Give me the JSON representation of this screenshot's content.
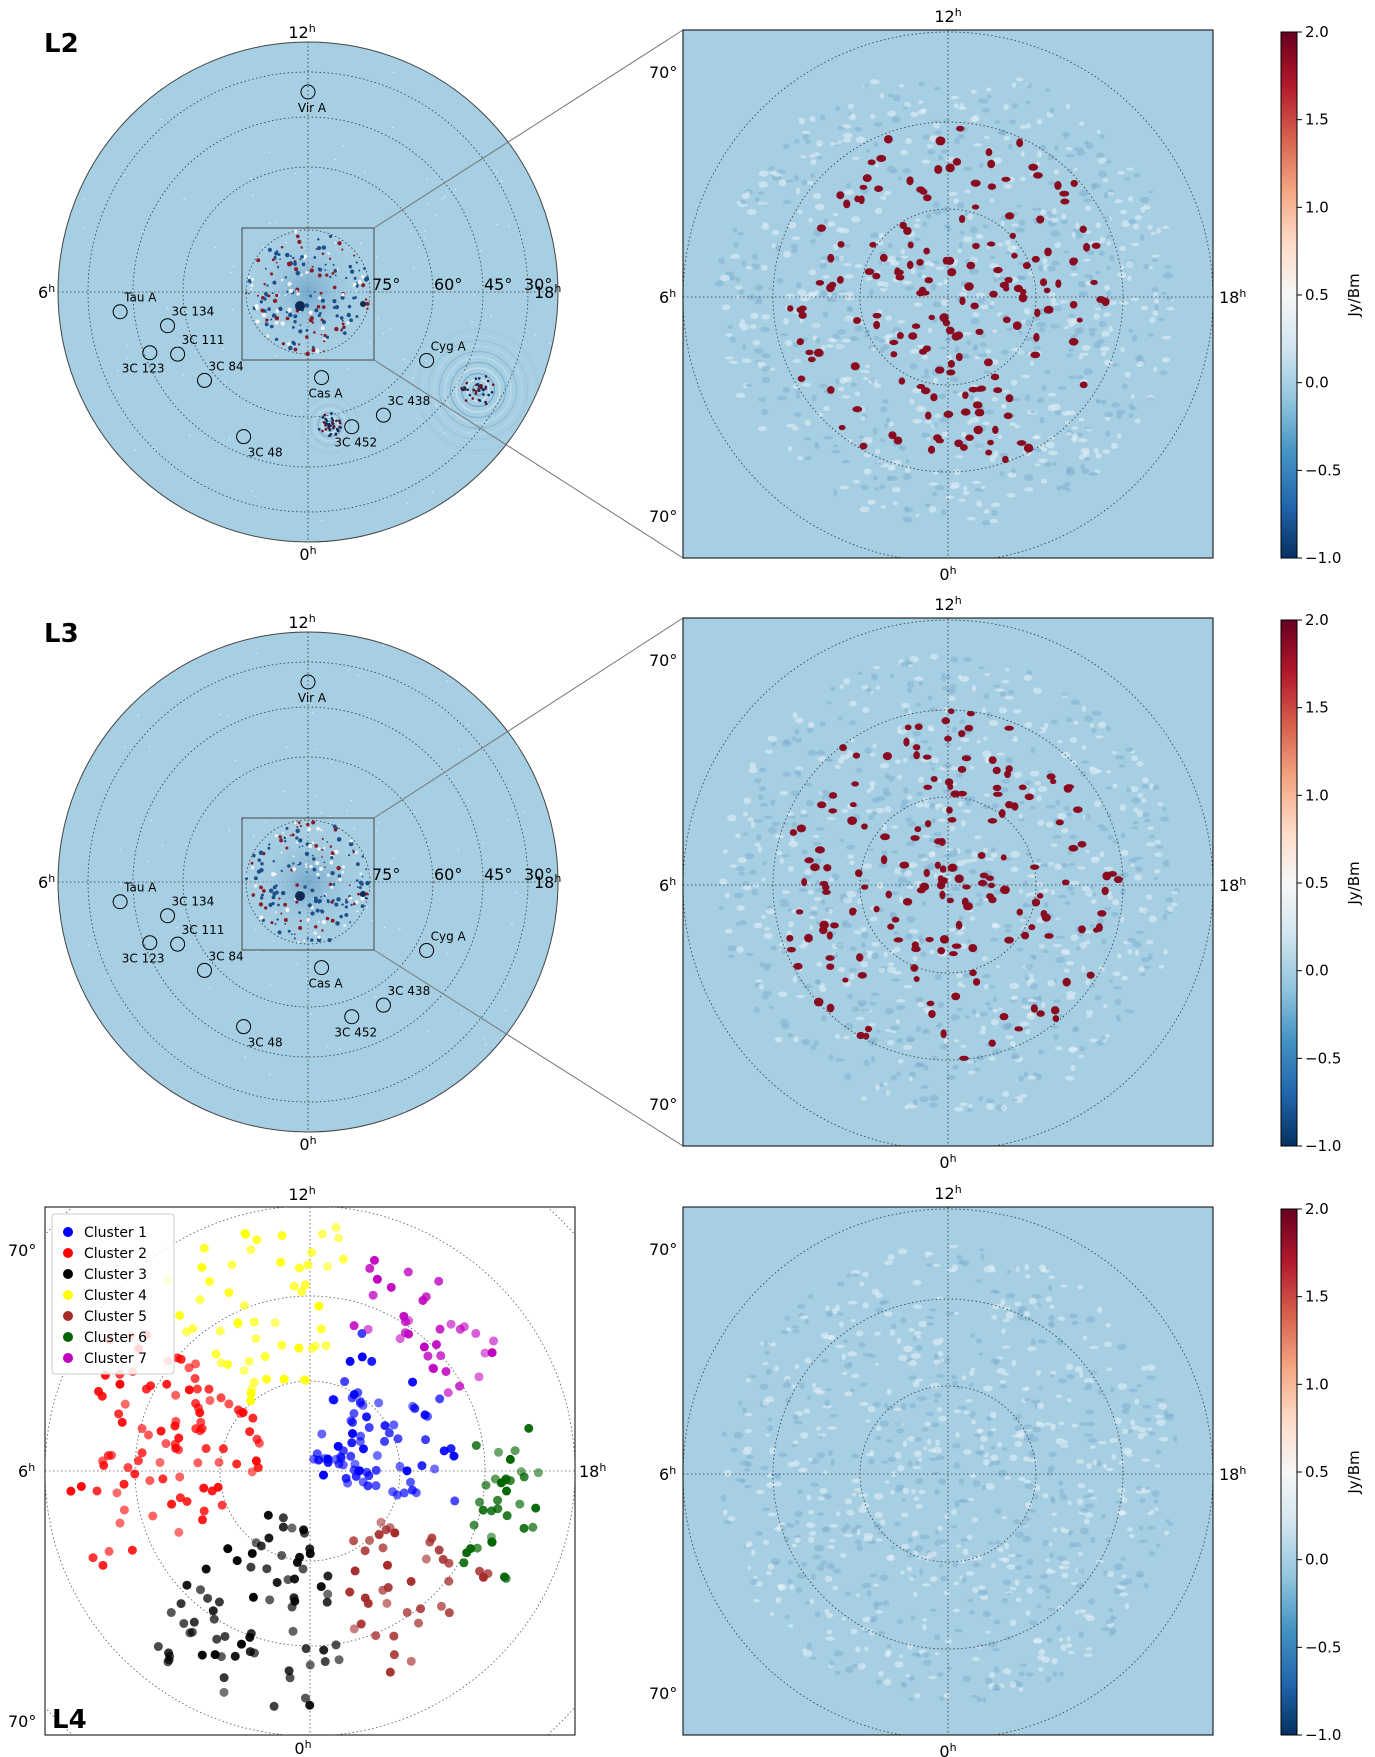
{
  "panels": {
    "L2": {
      "label": "L2"
    },
    "L3": {
      "label": "L3"
    },
    "L4": {
      "label": "L4"
    }
  },
  "hour_labels": {
    "top": "12",
    "bottom": "0",
    "left": "6",
    "right": "18",
    "suffix": "h"
  },
  "ring_labels": [
    "75°",
    "60°",
    "45°",
    "30°"
  ],
  "zoom_dec_label": "70°",
  "sources": [
    {
      "name": "Vir A",
      "ra_h": 12.0,
      "dec": 18
    },
    {
      "name": "Tau A",
      "ra_h": 5.6,
      "dec": 22
    },
    {
      "name": "3C 134",
      "ra_h": 5.1,
      "dec": 38
    },
    {
      "name": "3C 111",
      "ra_h": 4.3,
      "dec": 38
    },
    {
      "name": "3C 123",
      "ra_h": 4.6,
      "dec": 29
    },
    {
      "name": "3C 84",
      "ra_h": 3.3,
      "dec": 41
    },
    {
      "name": "3C 48",
      "ra_h": 1.6,
      "dec": 33
    },
    {
      "name": "Cas A",
      "ra_h": 23.4,
      "dec": 58.8
    },
    {
      "name": "3C 452",
      "ra_h": 22.8,
      "dec": 39
    },
    {
      "name": "3C 438",
      "ra_h": 21.9,
      "dec": 38
    },
    {
      "name": "Cyg A",
      "ra_h": 20.0,
      "dec": 40.7
    }
  ],
  "colorbar": {
    "label": "Jy/Bm",
    "ticks": [
      "2.0",
      "1.5",
      "1.0",
      "0.5",
      "0.0",
      "−0.5",
      "−1.0"
    ],
    "vmin": -1.0,
    "vmax": 2.0,
    "colors": [
      "#053061",
      "#2166ac",
      "#4393c3",
      "#92c5de",
      "#d1e5f0",
      "#f7f7f7",
      "#fddbc7",
      "#f4a582",
      "#d6604d",
      "#b2182b",
      "#67001f"
    ]
  },
  "legend": [
    {
      "name": "Cluster 1",
      "color": "#0000ff"
    },
    {
      "name": "Cluster 2",
      "color": "#ff0000"
    },
    {
      "name": "Cluster 3",
      "color": "#000000"
    },
    {
      "name": "Cluster 4",
      "color": "#ffff00"
    },
    {
      "name": "Cluster 5",
      "color": "#a52a2a"
    },
    {
      "name": "Cluster 6",
      "color": "#006400"
    },
    {
      "name": "Cluster 7",
      "color": "#bf00bf"
    }
  ],
  "colors": {
    "sky": "#a6cfe3",
    "axis": "#000000"
  }
}
